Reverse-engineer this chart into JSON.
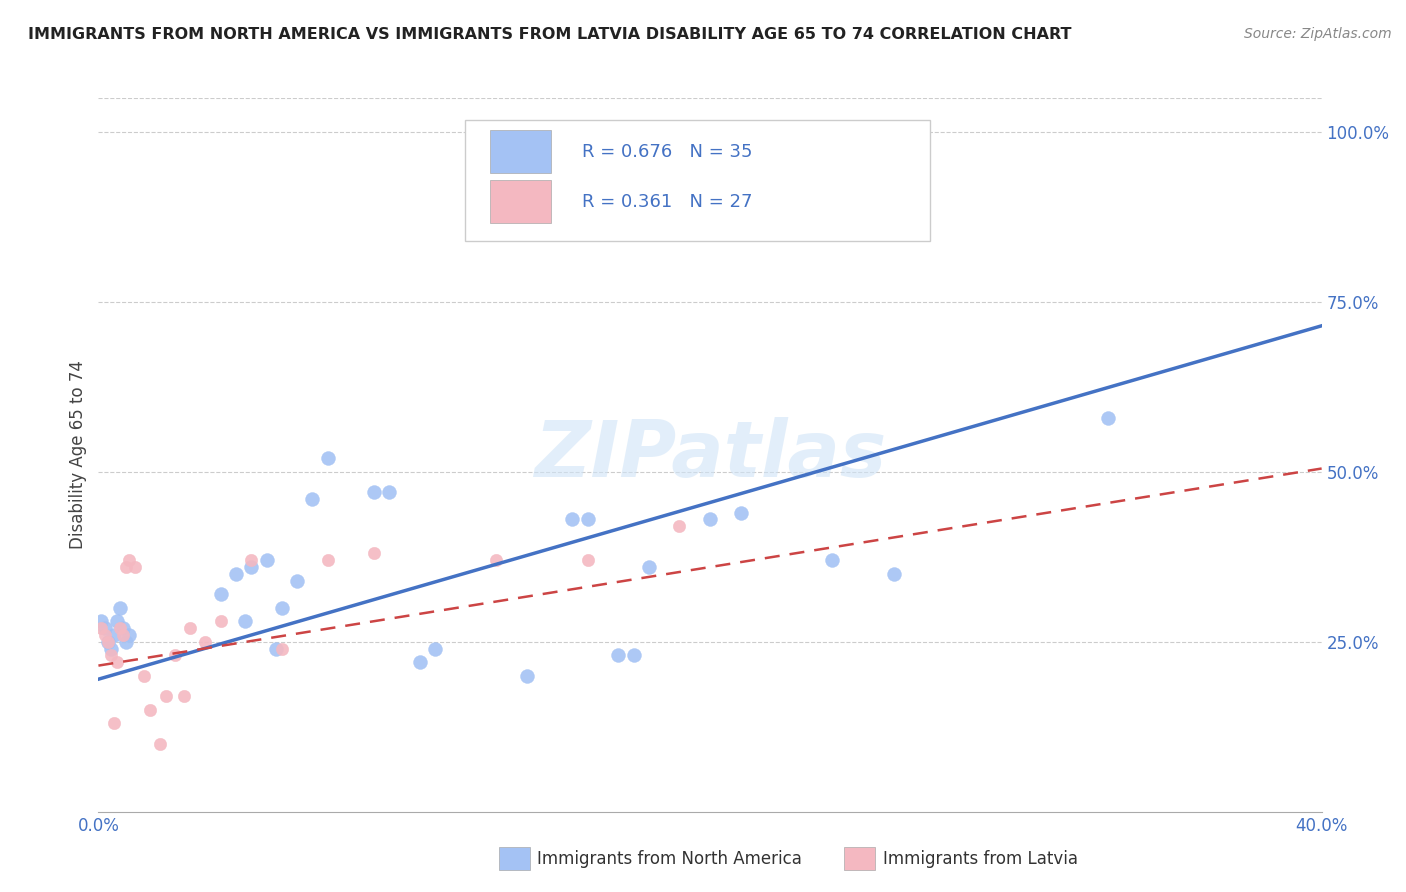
{
  "title": "IMMIGRANTS FROM NORTH AMERICA VS IMMIGRANTS FROM LATVIA DISABILITY AGE 65 TO 74 CORRELATION CHART",
  "source": "Source: ZipAtlas.com",
  "axis_color": "#4472c4",
  "ylabel": "Disability Age 65 to 74",
  "xlim": [
    0.0,
    0.4
  ],
  "ylim": [
    0.0,
    1.05
  ],
  "xticks": [
    0.0,
    0.08,
    0.16,
    0.24,
    0.32,
    0.4
  ],
  "xtick_labels": [
    "0.0%",
    "",
    "",
    "",
    "",
    "40.0%"
  ],
  "ytick_labels_right": [
    "25.0%",
    "50.0%",
    "75.0%",
    "100.0%"
  ],
  "ytick_positions_right": [
    0.25,
    0.5,
    0.75,
    1.0
  ],
  "blue_r": "0.676",
  "blue_n": "35",
  "pink_r": "0.361",
  "pink_n": "27",
  "blue_color": "#a4c2f4",
  "pink_color": "#f4b8c1",
  "blue_line_color": "#4472c4",
  "pink_line_color": "#cc4444",
  "watermark": "ZIPatlas",
  "north_america_x": [
    0.001,
    0.002,
    0.003,
    0.004,
    0.005,
    0.006,
    0.007,
    0.008,
    0.009,
    0.01,
    0.04,
    0.045,
    0.048,
    0.05,
    0.055,
    0.058,
    0.06,
    0.065,
    0.07,
    0.075,
    0.09,
    0.095,
    0.105,
    0.11,
    0.14,
    0.155,
    0.16,
    0.17,
    0.175,
    0.18,
    0.2,
    0.21,
    0.24,
    0.26,
    0.33
  ],
  "north_america_y": [
    0.28,
    0.27,
    0.25,
    0.24,
    0.26,
    0.28,
    0.3,
    0.27,
    0.25,
    0.26,
    0.32,
    0.35,
    0.28,
    0.36,
    0.37,
    0.24,
    0.3,
    0.34,
    0.46,
    0.52,
    0.47,
    0.47,
    0.22,
    0.24,
    0.2,
    0.43,
    0.43,
    0.23,
    0.23,
    0.36,
    0.43,
    0.44,
    0.37,
    0.35,
    0.58
  ],
  "latvia_x": [
    0.001,
    0.002,
    0.003,
    0.004,
    0.005,
    0.006,
    0.007,
    0.008,
    0.009,
    0.01,
    0.012,
    0.015,
    0.017,
    0.02,
    0.022,
    0.025,
    0.028,
    0.03,
    0.035,
    0.04,
    0.05,
    0.06,
    0.075,
    0.09,
    0.13,
    0.16,
    0.19
  ],
  "latvia_y": [
    0.27,
    0.26,
    0.25,
    0.23,
    0.13,
    0.22,
    0.27,
    0.26,
    0.36,
    0.37,
    0.36,
    0.2,
    0.15,
    0.1,
    0.17,
    0.23,
    0.17,
    0.27,
    0.25,
    0.28,
    0.37,
    0.24,
    0.37,
    0.38,
    0.37,
    0.37,
    0.42
  ],
  "north_america_size": 100,
  "latvia_size": 80,
  "blue_line_x0": 0.0,
  "blue_line_y0": 0.195,
  "blue_line_x1": 0.4,
  "blue_line_y1": 0.715,
  "pink_line_x0": 0.0,
  "pink_line_y0": 0.215,
  "pink_line_x1": 0.4,
  "pink_line_y1": 0.505,
  "legend_text_color": "#4472c4",
  "grid_color": "#cccccc",
  "spine_color": "#cccccc"
}
